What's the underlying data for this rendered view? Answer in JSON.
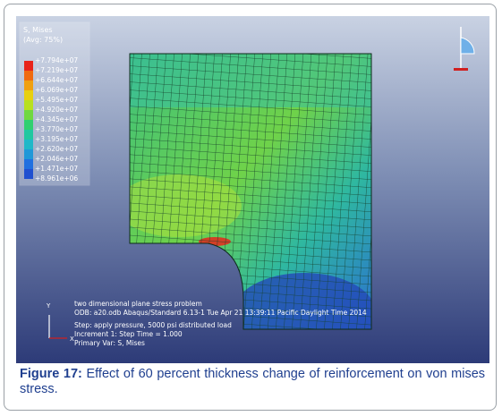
{
  "figure": {
    "legend": {
      "title": "S, Mises",
      "subtitle": "(Avg: 75%)",
      "labels": [
        "+7.794e+07",
        "+7.219e+07",
        "+6.644e+07",
        "+6.069e+07",
        "+5.495e+07",
        "+4.920e+07",
        "+4.345e+07",
        "+3.770e+07",
        "+3.195e+07",
        "+2.620e+07",
        "+2.046e+07",
        "+1.471e+07",
        "+8.961e+06"
      ]
    },
    "info": [
      "two dimensional plane stress problem",
      "ODB: a20.odb    Abaqus/Standard 6.13-1    Tue Apr 21 13:39:11 Pacific Daylight Time 2014",
      "Step: apply pressure, 5000 psi distributed load",
      "Increment    1: Step Time =    1.000",
      "Primary Var: S, Mises"
    ],
    "caption": {
      "label": "Figure 17:",
      "text": "Effect of 60 percent thickness change of reinforcement on von mises stress."
    }
  }
}
